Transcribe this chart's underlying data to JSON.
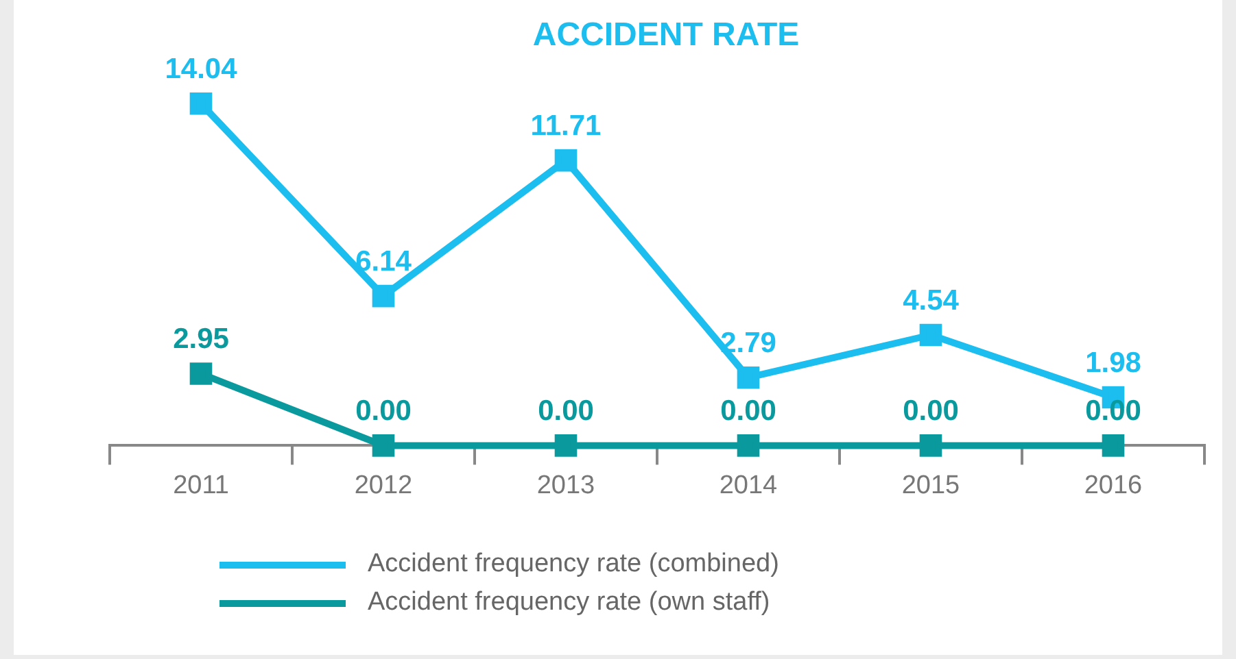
{
  "chart_data": {
    "type": "line",
    "title": "ACCIDENT RATE",
    "categories": [
      "2011",
      "2012",
      "2013",
      "2014",
      "2015",
      "2016"
    ],
    "marker": "square",
    "legend": "bottom",
    "series": [
      {
        "name": "Accident frequency rate (combined)",
        "color": "#1cbdef",
        "values": [
          14.04,
          6.14,
          11.71,
          2.79,
          4.54,
          1.98
        ],
        "value_labels": [
          "14.04",
          "6.14",
          "11.71",
          "2.79",
          "4.54",
          "1.98"
        ]
      },
      {
        "name": "Accident frequency rate (own staff)",
        "color": "#0a9a9e",
        "values": [
          2.95,
          0,
          0,
          0,
          0,
          0
        ],
        "value_labels": [
          "2.95",
          "0.00",
          "0.00",
          "0.00",
          "0.00",
          "0.00"
        ]
      }
    ]
  }
}
